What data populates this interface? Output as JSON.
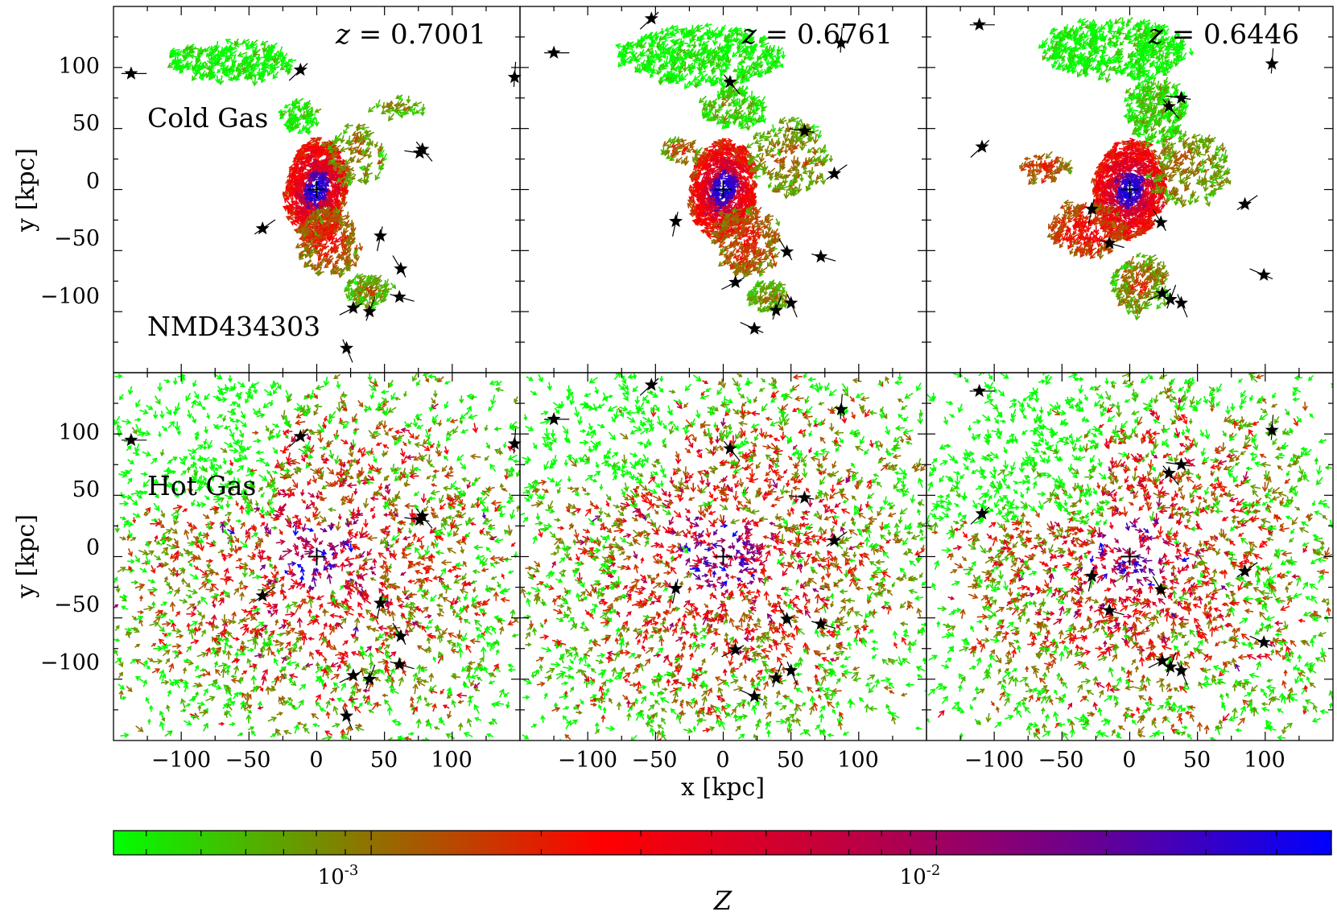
{
  "chart_data": {
    "type": "scatter",
    "description_panels": "2 rows x 3 columns of gas velocity-vector maps colored by metallicity; black stars mark satellites",
    "halo_label": "NMD434303",
    "row_labels": [
      "Cold Gas",
      "Hot Gas"
    ],
    "redshift_prefix": "z = ",
    "redshifts": [
      "0.7001",
      "0.6761",
      "0.6446"
    ],
    "xlabel": "x [kpc]",
    "ylabel": "y [kpc]",
    "xlim": [
      -150,
      150
    ],
    "ylim": [
      -150,
      150
    ],
    "xticks": [
      -100,
      -50,
      0,
      50,
      100
    ],
    "yticks": [
      -100,
      -50,
      0,
      50,
      100
    ],
    "tick_labels": [
      "−100",
      "−50",
      "0",
      "50",
      "100"
    ],
    "colorbar": {
      "label": "Z",
      "scale": "log",
      "range": [
        0.00035,
        0.05
      ],
      "ticks": [
        {
          "value": 0.001,
          "base": "10",
          "exp": "-3"
        },
        {
          "value": 0.01,
          "base": "10",
          "exp": "-2"
        }
      ],
      "colors": [
        "#00ff00",
        "#8a7800",
        "#ff0000",
        "#c00040",
        "#6a0090",
        "#0000ff"
      ]
    },
    "satellites": [
      [
        [
          -137,
          95
        ],
        [
          -12,
          98
        ],
        [
          146,
          92
        ],
        [
          78,
          33
        ],
        [
          76,
          30
        ],
        [
          -40,
          -32
        ],
        [
          47,
          -38
        ],
        [
          62,
          -65
        ],
        [
          61,
          -88
        ],
        [
          27,
          -97
        ],
        [
          39,
          -100
        ],
        [
          22,
          -130
        ]
      ],
      [
        [
          -125,
          112
        ],
        [
          -53,
          140
        ],
        [
          87,
          120
        ],
        [
          5,
          88
        ],
        [
          60,
          48
        ],
        [
          82,
          13
        ],
        [
          -35,
          -26
        ],
        [
          47,
          -51
        ],
        [
          72,
          -55
        ],
        [
          9,
          -76
        ],
        [
          39,
          -99
        ],
        [
          50,
          -93
        ],
        [
          23,
          -114
        ]
      ],
      [
        [
          -111,
          135
        ],
        [
          -109,
          35
        ],
        [
          105,
          103
        ],
        [
          29,
          68
        ],
        [
          38,
          75
        ],
        [
          85,
          -12
        ],
        [
          -28,
          -16
        ],
        [
          23,
          -27
        ],
        [
          -15,
          -44
        ],
        [
          24,
          -85
        ],
        [
          30,
          -90
        ],
        [
          38,
          -93
        ],
        [
          99,
          -70
        ]
      ]
    ]
  }
}
